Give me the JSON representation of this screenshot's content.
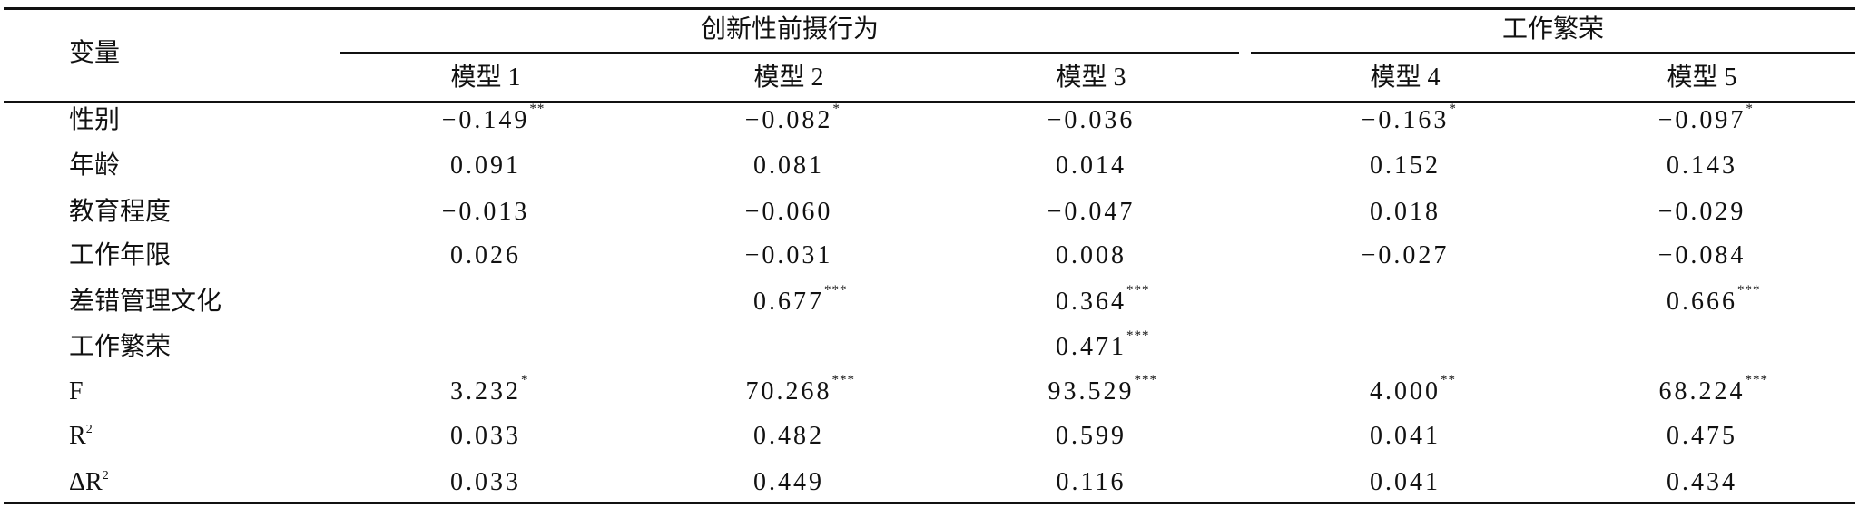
{
  "table": {
    "header": {
      "variable": "变量",
      "groups": [
        {
          "title": "创新性前摄行为",
          "models": [
            "模型 1",
            "模型 2",
            "模型 3"
          ]
        },
        {
          "title": "工作繁荣",
          "models": [
            "模型 4",
            "模型 5"
          ]
        }
      ]
    },
    "rows": [
      {
        "label": {
          "text": "性别"
        },
        "cells": [
          {
            "value": "−0.149",
            "sig": "**"
          },
          {
            "value": "−0.082",
            "sig": "*"
          },
          {
            "value": "−0.036"
          },
          {
            "value": "−0.163",
            "sig": "*"
          },
          {
            "value": "−0.097",
            "sig": "*"
          }
        ]
      },
      {
        "label": {
          "text": "年龄"
        },
        "cells": [
          {
            "value": "0.091"
          },
          {
            "value": "0.081"
          },
          {
            "value": "0.014"
          },
          {
            "value": "0.152"
          },
          {
            "value": "0.143"
          }
        ]
      },
      {
        "label": {
          "text": "教育程度"
        },
        "cells": [
          {
            "value": "−0.013"
          },
          {
            "value": "−0.060"
          },
          {
            "value": "−0.047"
          },
          {
            "value": "0.018"
          },
          {
            "value": "−0.029"
          }
        ]
      },
      {
        "label": {
          "text": "工作年限"
        },
        "cells": [
          {
            "value": "0.026"
          },
          {
            "value": "−0.031"
          },
          {
            "value": "0.008"
          },
          {
            "value": "−0.027"
          },
          {
            "value": "−0.084"
          }
        ]
      },
      {
        "label": {
          "text": "差错管理文化"
        },
        "cells": [
          null,
          {
            "value": "0.677",
            "sig": "***"
          },
          {
            "value": "0.364",
            "sig": "***"
          },
          null,
          {
            "value": "0.666",
            "sig": "***"
          }
        ]
      },
      {
        "label": {
          "text": "工作繁荣"
        },
        "cells": [
          null,
          null,
          {
            "value": "0.471",
            "sig": "***"
          },
          null,
          null
        ]
      },
      {
        "label": {
          "text": "F"
        },
        "cells": [
          {
            "value": "3.232",
            "sig": "*"
          },
          {
            "value": "70.268",
            "sig": "***"
          },
          {
            "value": "93.529",
            "sig": "***"
          },
          {
            "value": "4.000",
            "sig": "**"
          },
          {
            "value": "68.224",
            "sig": "***"
          }
        ]
      },
      {
        "label": {
          "text": "R",
          "sup": "2"
        },
        "cells": [
          {
            "value": "0.033"
          },
          {
            "value": "0.482"
          },
          {
            "value": "0.599"
          },
          {
            "value": "0.041"
          },
          {
            "value": "0.475"
          }
        ]
      },
      {
        "label": {
          "text": "ΔR",
          "sup": "2"
        },
        "cells": [
          {
            "value": "0.033"
          },
          {
            "value": "0.449"
          },
          {
            "value": "0.116"
          },
          {
            "value": "0.041"
          },
          {
            "value": "0.434"
          }
        ]
      }
    ]
  }
}
